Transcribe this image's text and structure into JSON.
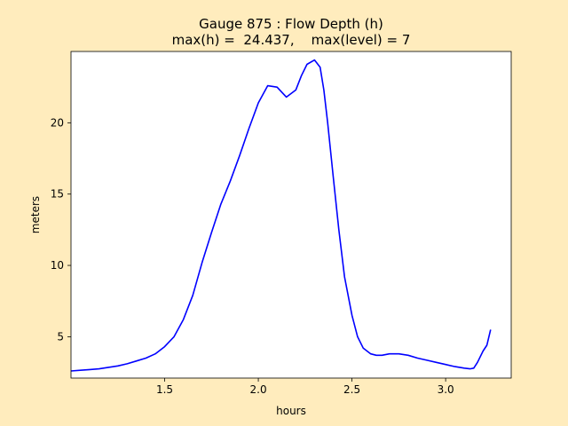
{
  "chart_data": {
    "type": "line",
    "title_line1": "Gauge 875 : Flow Depth (h)",
    "title_line2": "max(h) =  24.437,    max(level) = 7",
    "xlabel": "hours",
    "ylabel": "meters",
    "xlim": [
      1.0,
      3.35
    ],
    "ylim": [
      2.1,
      25.0
    ],
    "xticks": [
      1.5,
      2.0,
      2.5,
      3.0
    ],
    "xtick_labels": [
      "1.5",
      "2.0",
      "2.5",
      "3.0"
    ],
    "yticks": [
      5,
      10,
      15,
      20
    ],
    "ytick_labels": [
      "5",
      "10",
      "15",
      "20"
    ],
    "grid": false,
    "colors": {
      "line": "#0000ff",
      "figure_background": "#ffecbd",
      "axes_background": "#ffffff"
    },
    "series": [
      {
        "x": [
          1.0,
          1.05,
          1.1,
          1.15,
          1.2,
          1.25,
          1.3,
          1.35,
          1.4,
          1.45,
          1.5,
          1.55,
          1.6,
          1.65,
          1.7,
          1.75,
          1.8,
          1.85,
          1.9,
          1.95,
          2.0,
          2.05,
          2.1,
          2.15,
          2.2,
          2.23,
          2.26,
          2.3,
          2.33,
          2.35,
          2.37,
          2.4,
          2.43,
          2.46,
          2.5,
          2.53,
          2.56,
          2.6,
          2.63,
          2.66,
          2.7,
          2.75,
          2.8,
          2.85,
          2.9,
          2.95,
          3.0,
          3.05,
          3.1,
          3.13,
          3.15,
          3.17,
          3.2,
          3.22,
          3.24
        ],
        "y": [
          2.6,
          2.65,
          2.7,
          2.75,
          2.85,
          2.95,
          3.1,
          3.3,
          3.5,
          3.8,
          4.3,
          5.0,
          6.2,
          7.9,
          10.2,
          12.3,
          14.3,
          15.9,
          17.7,
          19.6,
          21.4,
          22.6,
          22.5,
          21.8,
          22.3,
          23.3,
          24.1,
          24.4,
          23.9,
          22.3,
          20.0,
          16.2,
          12.5,
          9.2,
          6.5,
          5.0,
          4.2,
          3.8,
          3.7,
          3.7,
          3.8,
          3.8,
          3.7,
          3.5,
          3.35,
          3.2,
          3.05,
          2.9,
          2.8,
          2.75,
          2.8,
          3.2,
          4.0,
          4.4,
          5.5
        ]
      }
    ]
  }
}
